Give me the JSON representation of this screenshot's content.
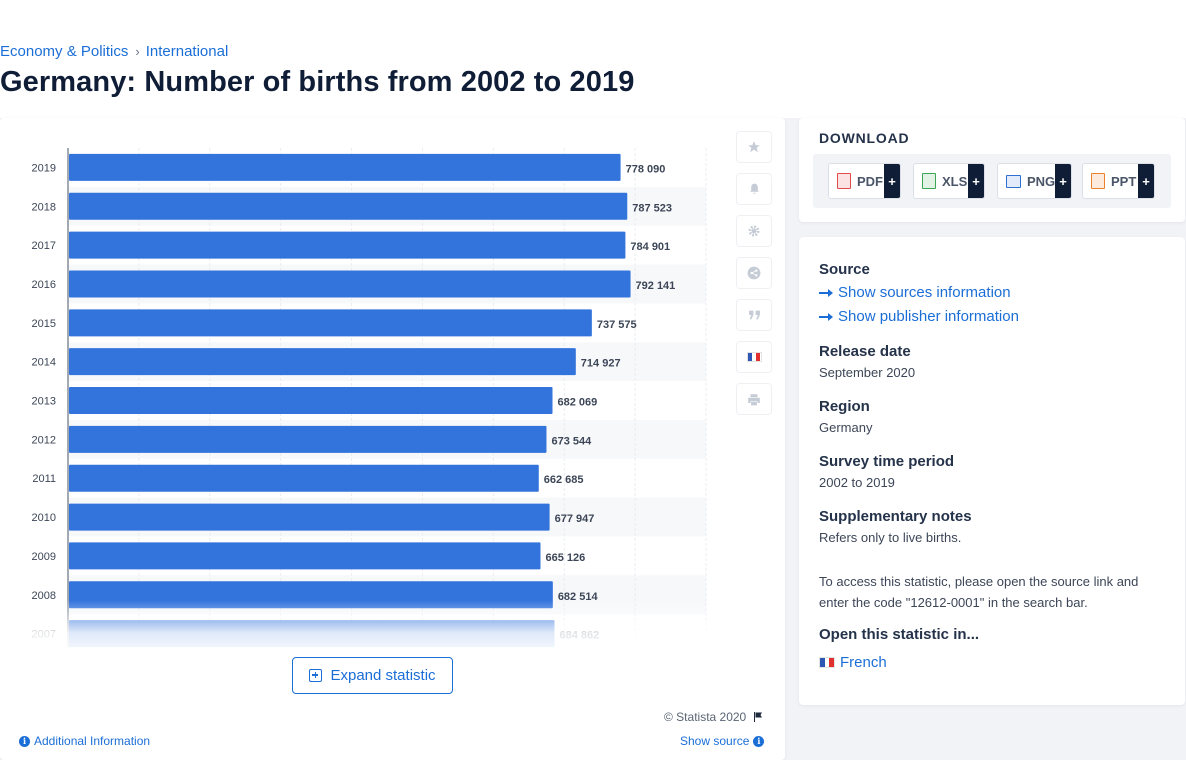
{
  "breadcrumb": {
    "item1": "Economy & Politics",
    "item2": "International"
  },
  "page_title": "Germany: Number of births from 2002 to 2019",
  "chart_data": {
    "type": "bar",
    "orientation": "horizontal",
    "categories": [
      "2019",
      "2018",
      "2017",
      "2016",
      "2015",
      "2014",
      "2013",
      "2012",
      "2011",
      "2010",
      "2009",
      "2008",
      "2007"
    ],
    "values": [
      778090,
      787523,
      784901,
      792141,
      737575,
      714927,
      682069,
      673544,
      662685,
      677947,
      665126,
      682514,
      684862
    ],
    "value_labels": [
      "778 090",
      "787 523",
      "784 901",
      "792 141",
      "737 575",
      "714 927",
      "682 069",
      "673 544",
      "662 685",
      "677 947",
      "665 126",
      "682 514",
      "684 862"
    ],
    "bar_color": "#3273dc",
    "xlim": [
      0,
      900000
    ],
    "grid": true
  },
  "chart_actions": {
    "favorite": "star-icon",
    "notify": "bell-icon",
    "settings": "gear-icon",
    "share": "share-icon",
    "cite": "quote-icon",
    "language": "flag-fr-icon",
    "print": "print-icon"
  },
  "expand_label": "Expand statistic",
  "copyright": "© Statista 2020",
  "additional_info": "Additional Information",
  "show_source": "Show source",
  "download": {
    "heading": "DOWNLOAD",
    "buttons": [
      {
        "label": "PDF",
        "plus": "+",
        "color": "#e34b4b"
      },
      {
        "label": "XLS",
        "plus": "+",
        "color": "#3aa655"
      },
      {
        "label": "PNG",
        "plus": "+",
        "color": "#2f6fd0"
      },
      {
        "label": "PPT",
        "plus": "+",
        "color": "#e8822e"
      }
    ]
  },
  "info": {
    "source_label": "Source",
    "sources_link": "Show sources information",
    "publisher_link": "Show publisher information",
    "release_label": "Release date",
    "release_value": "September 2020",
    "region_label": "Region",
    "region_value": "Germany",
    "period_label": "Survey time period",
    "period_value": "2002 to 2019",
    "notes_label": "Supplementary notes",
    "notes_value": "Refers only to live births.",
    "access_note": "To access this statistic, please open the source link and enter the code \"12612-0001\" in the search bar.",
    "open_label": "Open this statistic in...",
    "french_link": "French"
  }
}
